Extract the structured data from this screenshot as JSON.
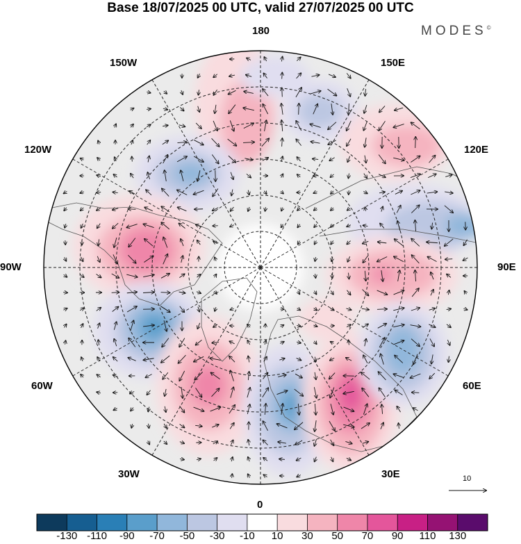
{
  "title": "Base 18/07/2025 00 UTC, valid 27/07/2025 00 UTC",
  "logo": {
    "text": "MODES",
    "mark": "©"
  },
  "longitude_labels": {
    "lon_180": "180",
    "lon_150E": "150E",
    "lon_120E": "120E",
    "lon_90E": "90E",
    "lon_60E": "60E",
    "lon_30E": "30E",
    "lon_0": "0",
    "lon_30W": "30W",
    "lon_60W": "60W",
    "lon_90W": "90W",
    "lon_120W": "120W",
    "lon_150W": "150W"
  },
  "reference_vector": {
    "label": "10"
  },
  "colorbar": {
    "colors": [
      "#0d3a5c",
      "#165e91",
      "#2a7fb6",
      "#5a9ecb",
      "#91b7db",
      "#bcc7e2",
      "#e0def0",
      "#ffffff",
      "#f9dcdf",
      "#f5b4c0",
      "#ef86a9",
      "#e4569b",
      "#c82085",
      "#951273",
      "#5a0c6c"
    ],
    "labels": [
      "-130",
      "-110",
      "-90",
      "-70",
      "-50",
      "-30",
      "-10",
      "10",
      "30",
      "50",
      "70",
      "90",
      "110",
      "130"
    ]
  },
  "anomaly_palette": {
    "neg1": "#e0def0",
    "neg2": "#bcc7e2",
    "neg3": "#91b7db",
    "neg4": "#5a9ecb",
    "neg5": "#2a7fb6",
    "pos1": "#f9dcdf",
    "pos2": "#f5b4c0",
    "pos3": "#ef86a9",
    "pos4": "#e4569b",
    "neutral": "#ebebeb"
  }
}
